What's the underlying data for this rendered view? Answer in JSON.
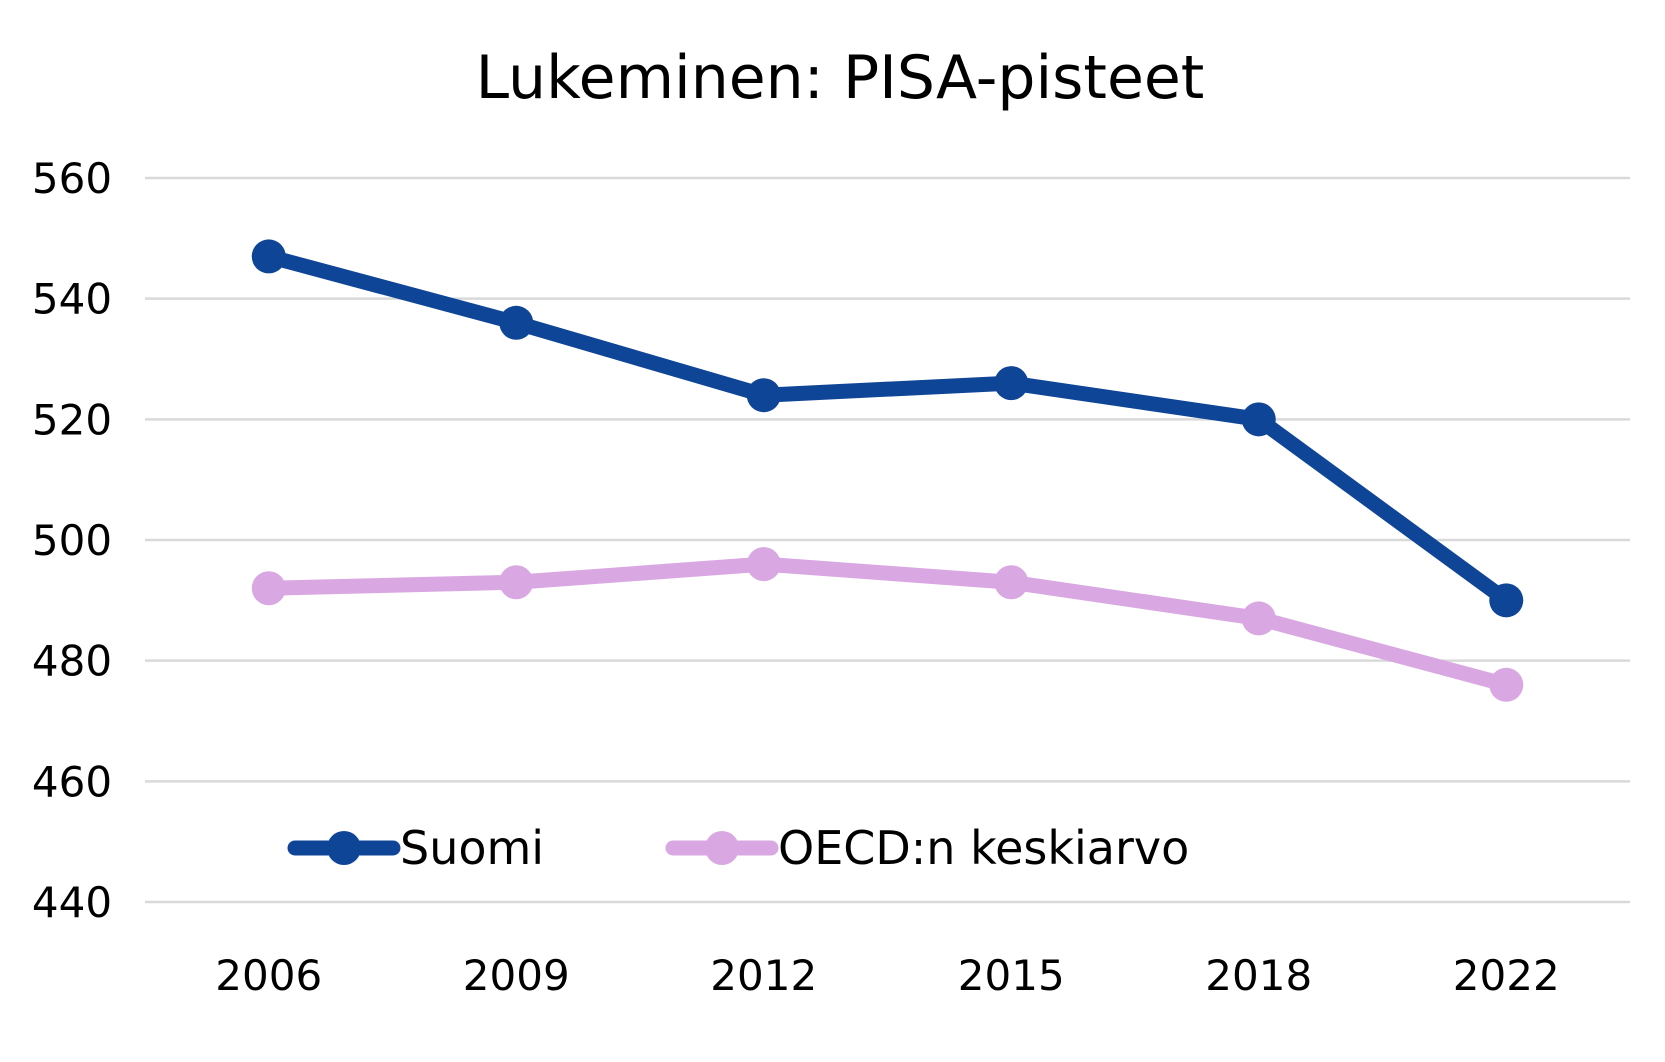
{
  "chart_data": {
    "type": "line",
    "title": "Lukeminen: PISA-pisteet",
    "xlabel": "",
    "ylabel": "",
    "categories": [
      "2006",
      "2009",
      "2012",
      "2015",
      "2018",
      "2022"
    ],
    "series": [
      {
        "name": "Suomi",
        "color": "#0f4597",
        "values": [
          547,
          536,
          524,
          526,
          520,
          490
        ]
      },
      {
        "name": "OECD:n keskiarvo",
        "color": "#d9a8e2",
        "values": [
          492,
          493,
          496,
          493,
          487,
          476
        ]
      }
    ],
    "ylim": [
      440,
      560
    ],
    "yticks": [
      "440",
      "460",
      "480",
      "500",
      "520",
      "540",
      "560"
    ],
    "grid": true,
    "gridline_color": "#d9d9d9",
    "legend_position": "bottom-left inside plot"
  }
}
